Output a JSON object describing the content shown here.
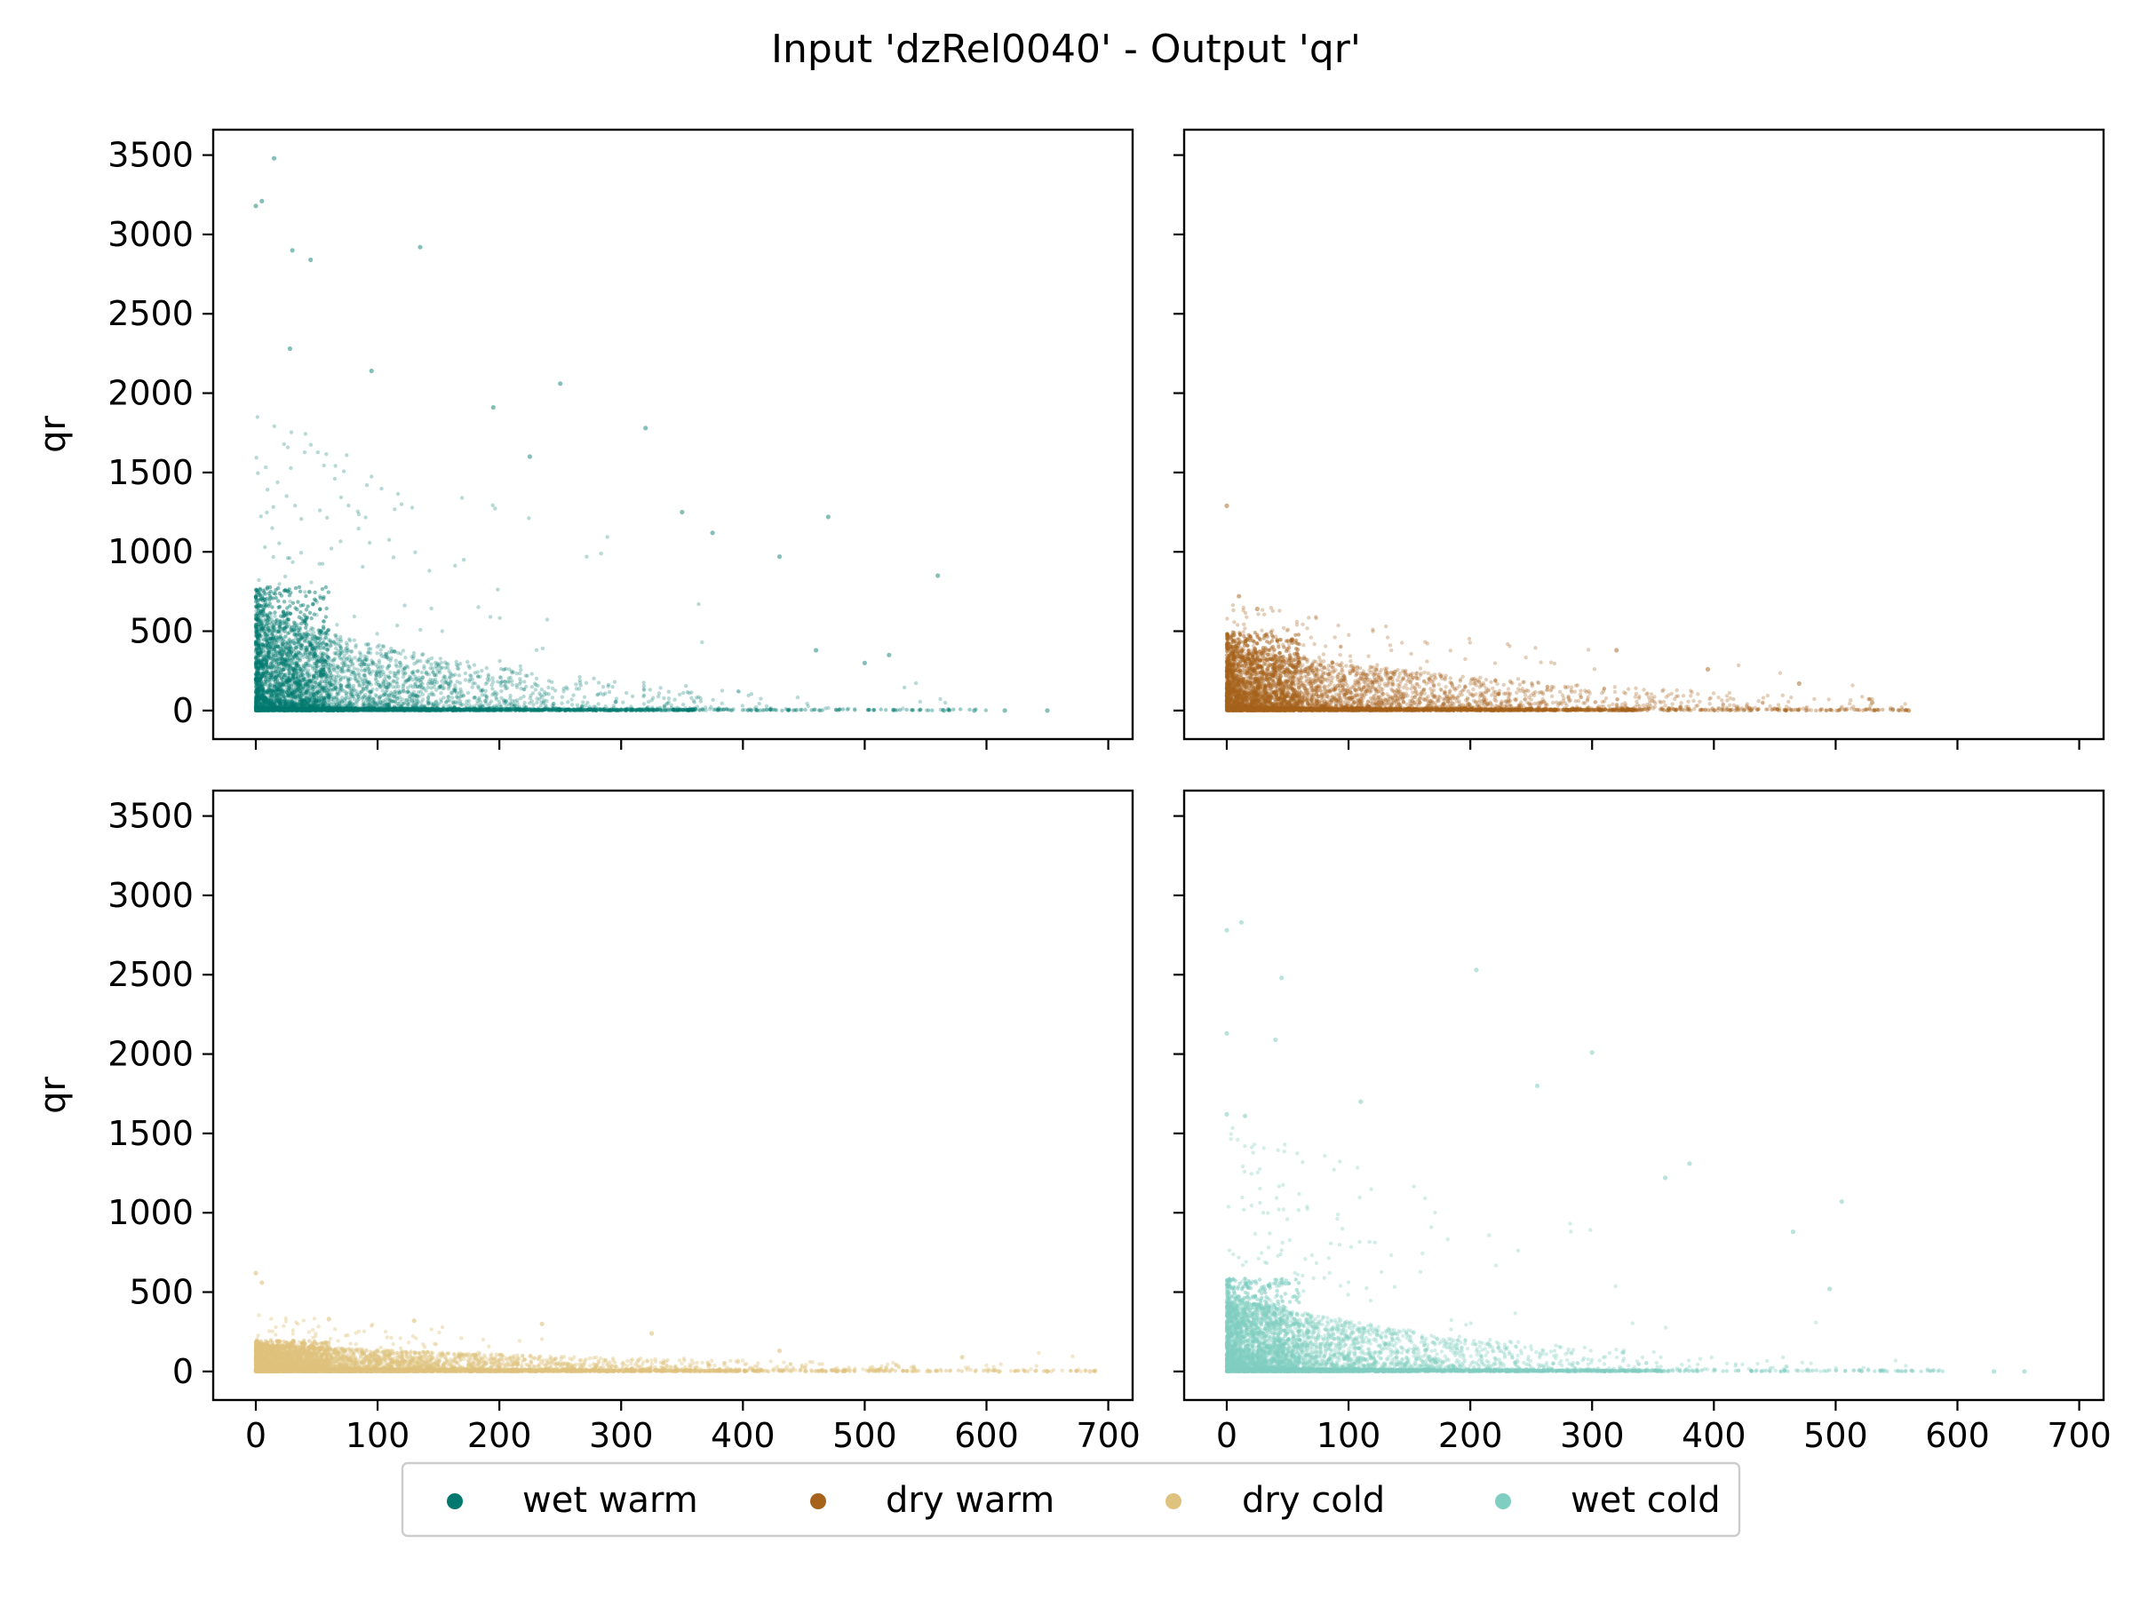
{
  "chart_data": {
    "type": "scatter",
    "title": "Input 'dzRel0040' - Output 'qr'",
    "xlabel": "dzRel0040",
    "ylabel": "qr",
    "xlim": [
      -35,
      720
    ],
    "ylim": [
      -180,
      3660
    ],
    "xticks": [
      0,
      100,
      200,
      300,
      400,
      500,
      600,
      700
    ],
    "yticks": [
      0,
      500,
      1000,
      1500,
      2000,
      2500,
      3000,
      3500
    ],
    "grid": false,
    "legend": {
      "placement": "bottom-center",
      "entries": [
        {
          "label": "wet warm",
          "color": "#01796F"
        },
        {
          "label": "dry warm",
          "color": "#A6611A"
        },
        {
          "label": "dry cold",
          "color": "#DFC27D"
        },
        {
          "label": "wet cold",
          "color": "#80CDC1"
        }
      ]
    },
    "panels": [
      {
        "name": "wet warm",
        "color": "#01796F",
        "row": 0,
        "col": 0,
        "point_opacity": 0.28,
        "sample_points": [
          [
            0,
            3180
          ],
          [
            5,
            3210
          ],
          [
            15,
            3480
          ],
          [
            135,
            2920
          ],
          [
            30,
            2900
          ],
          [
            45,
            2840
          ],
          [
            28,
            2280
          ],
          [
            95,
            2140
          ],
          [
            195,
            1910
          ],
          [
            250,
            2060
          ],
          [
            320,
            1780
          ],
          [
            225,
            1600
          ],
          [
            350,
            1250
          ],
          [
            375,
            1120
          ],
          [
            470,
            1220
          ],
          [
            560,
            850
          ],
          [
            430,
            970
          ],
          [
            520,
            350
          ],
          [
            500,
            300
          ],
          [
            460,
            380
          ],
          [
            565,
            0
          ],
          [
            650,
            0
          ],
          [
            615,
            0
          ],
          [
            590,
            0
          ]
        ],
        "cluster": {
          "x_max": 600,
          "y_core": 600,
          "y_max": 1900,
          "decay": 90
        }
      },
      {
        "name": "dry warm",
        "color": "#A6611A",
        "row": 0,
        "col": 1,
        "point_opacity": 0.3,
        "sample_points": [
          [
            0,
            1290
          ],
          [
            10,
            720
          ],
          [
            25,
            640
          ],
          [
            320,
            380
          ],
          [
            395,
            260
          ],
          [
            470,
            170
          ],
          [
            530,
            50
          ],
          [
            560,
            0
          ]
        ],
        "cluster": {
          "x_max": 560,
          "y_core": 380,
          "y_max": 700,
          "decay": 110
        }
      },
      {
        "name": "dry cold",
        "color": "#DFC27D",
        "row": 1,
        "col": 0,
        "point_opacity": 0.4,
        "sample_points": [
          [
            0,
            620
          ],
          [
            5,
            560
          ],
          [
            60,
            330
          ],
          [
            130,
            320
          ],
          [
            235,
            300
          ],
          [
            325,
            240
          ],
          [
            430,
            130
          ],
          [
            580,
            90
          ],
          [
            685,
            0
          ],
          [
            650,
            0
          ],
          [
            610,
            0
          ]
        ],
        "cluster": {
          "x_max": 690,
          "y_core": 150,
          "y_max": 360,
          "decay": 120
        }
      },
      {
        "name": "wet cold",
        "color": "#80CDC1",
        "row": 1,
        "col": 1,
        "point_opacity": 0.35,
        "sample_points": [
          [
            0,
            2780
          ],
          [
            12,
            2830
          ],
          [
            45,
            2480
          ],
          [
            205,
            2530
          ],
          [
            300,
            2010
          ],
          [
            255,
            1800
          ],
          [
            0,
            2130
          ],
          [
            40,
            2090
          ],
          [
            110,
            1700
          ],
          [
            380,
            1310
          ],
          [
            360,
            1220
          ],
          [
            505,
            1070
          ],
          [
            465,
            880
          ],
          [
            495,
            520
          ],
          [
            0,
            1620
          ],
          [
            15,
            1610
          ],
          [
            630,
            0
          ],
          [
            655,
            0
          ]
        ],
        "cluster": {
          "x_max": 600,
          "y_core": 450,
          "y_max": 1600,
          "decay": 90
        }
      }
    ]
  }
}
